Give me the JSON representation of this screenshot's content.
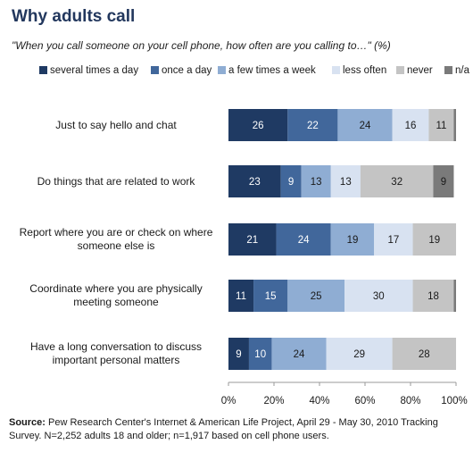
{
  "title": "Why adults call",
  "subtitle": "\"When you call someone on your cell phone, how often are you calling to…\" (%)",
  "source": {
    "label": "Source:",
    "text": "Pew Research Center's Internet & American Life Project, April 29 - May 30, 2010 Tracking Survey. N=2,252 adults 18 and older; n=1,917 based on cell phone users."
  },
  "chart_data": {
    "type": "bar",
    "orientation": "horizontal",
    "stacked": true,
    "categories": [
      "Just to say hello and chat",
      "Do things that are related to work",
      "Report where you are or check on where someone else is",
      "Coordinate where you are physically meeting someone",
      "Have a long conversation to discuss important personal matters"
    ],
    "series": [
      {
        "name": "several times a day",
        "color": "#1f3a63",
        "values": [
          26,
          23,
          21,
          11,
          9
        ]
      },
      {
        "name": "once a day",
        "color": "#41679b",
        "values": [
          22,
          9,
          24,
          15,
          10
        ]
      },
      {
        "name": "a few times a week",
        "color": "#8fadd3",
        "values": [
          24,
          13,
          19,
          25,
          24
        ]
      },
      {
        "name": "less often",
        "color": "#d8e2f1",
        "values": [
          16,
          13,
          17,
          30,
          29
        ]
      },
      {
        "name": "never",
        "color": "#c4c4c4",
        "values": [
          11,
          32,
          19,
          18,
          28
        ]
      },
      {
        "name": "n/a",
        "color": "#7a7a7a",
        "values": [
          1,
          9,
          0,
          1,
          0
        ]
      }
    ],
    "xlim": [
      0,
      100
    ],
    "xticks": [
      "0%",
      "20%",
      "40%",
      "60%",
      "80%",
      "100%"
    ],
    "legend_position": "top"
  }
}
